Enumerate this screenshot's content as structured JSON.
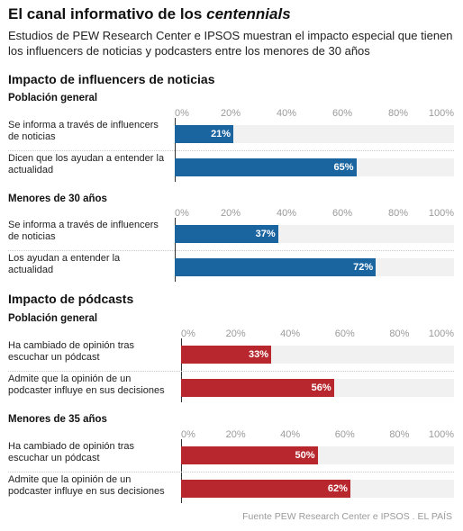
{
  "title_plain": "El canal informativo de los ",
  "title_italic": "centennials",
  "subtitle": "Estudios de PEW Research Center e IPSOS muestran el impacto especial que tienen los influencers de noticias y podcasters entre los menores de 30 años",
  "source": "Fuente PEW Research Center e IPSOS . EL PAÍS",
  "colors": {
    "influencers": "#1a64a0",
    "podcasts": "#b7272d",
    "track": "#f1f1f1"
  },
  "chart_data": [
    {
      "type": "bar",
      "orientation": "horizontal",
      "section": "Impacto de influencers de noticias",
      "groups": [
        {
          "title": "Población general",
          "categories": [
            "Se informa a través de influencers de noticias",
            "Dicen que los ayudan a entender la actualidad"
          ],
          "values": [
            21,
            65
          ]
        },
        {
          "title": "Menores de 30 años",
          "categories": [
            "Se informa a través de influencers de noticias",
            "Los ayudan a entender la actualidad"
          ],
          "values": [
            37,
            72
          ]
        }
      ],
      "xlim": [
        0,
        100
      ],
      "ticks": [
        "0%",
        "20%",
        "40%",
        "60%",
        "80%",
        "100%"
      ],
      "value_suffix": "%"
    },
    {
      "type": "bar",
      "orientation": "horizontal",
      "section": "Impacto de pódcasts",
      "groups": [
        {
          "title": "Población general",
          "categories": [
            "Ha cambiado de opinión tras escuchar un pódcast",
            "Admite que la opinión de un podcaster influye en sus decisiones"
          ],
          "values": [
            33,
            56
          ]
        },
        {
          "title": "Menores de 35 años",
          "categories": [
            "Ha cambiado de opinión tras escuchar un pódcast",
            "Admite que la opinión de un podcaster influye en sus decisiones"
          ],
          "values": [
            50,
            62
          ]
        }
      ],
      "xlim": [
        0,
        100
      ],
      "ticks": [
        "0%",
        "20%",
        "40%",
        "60%",
        "80%",
        "100%"
      ],
      "value_suffix": "%"
    }
  ]
}
